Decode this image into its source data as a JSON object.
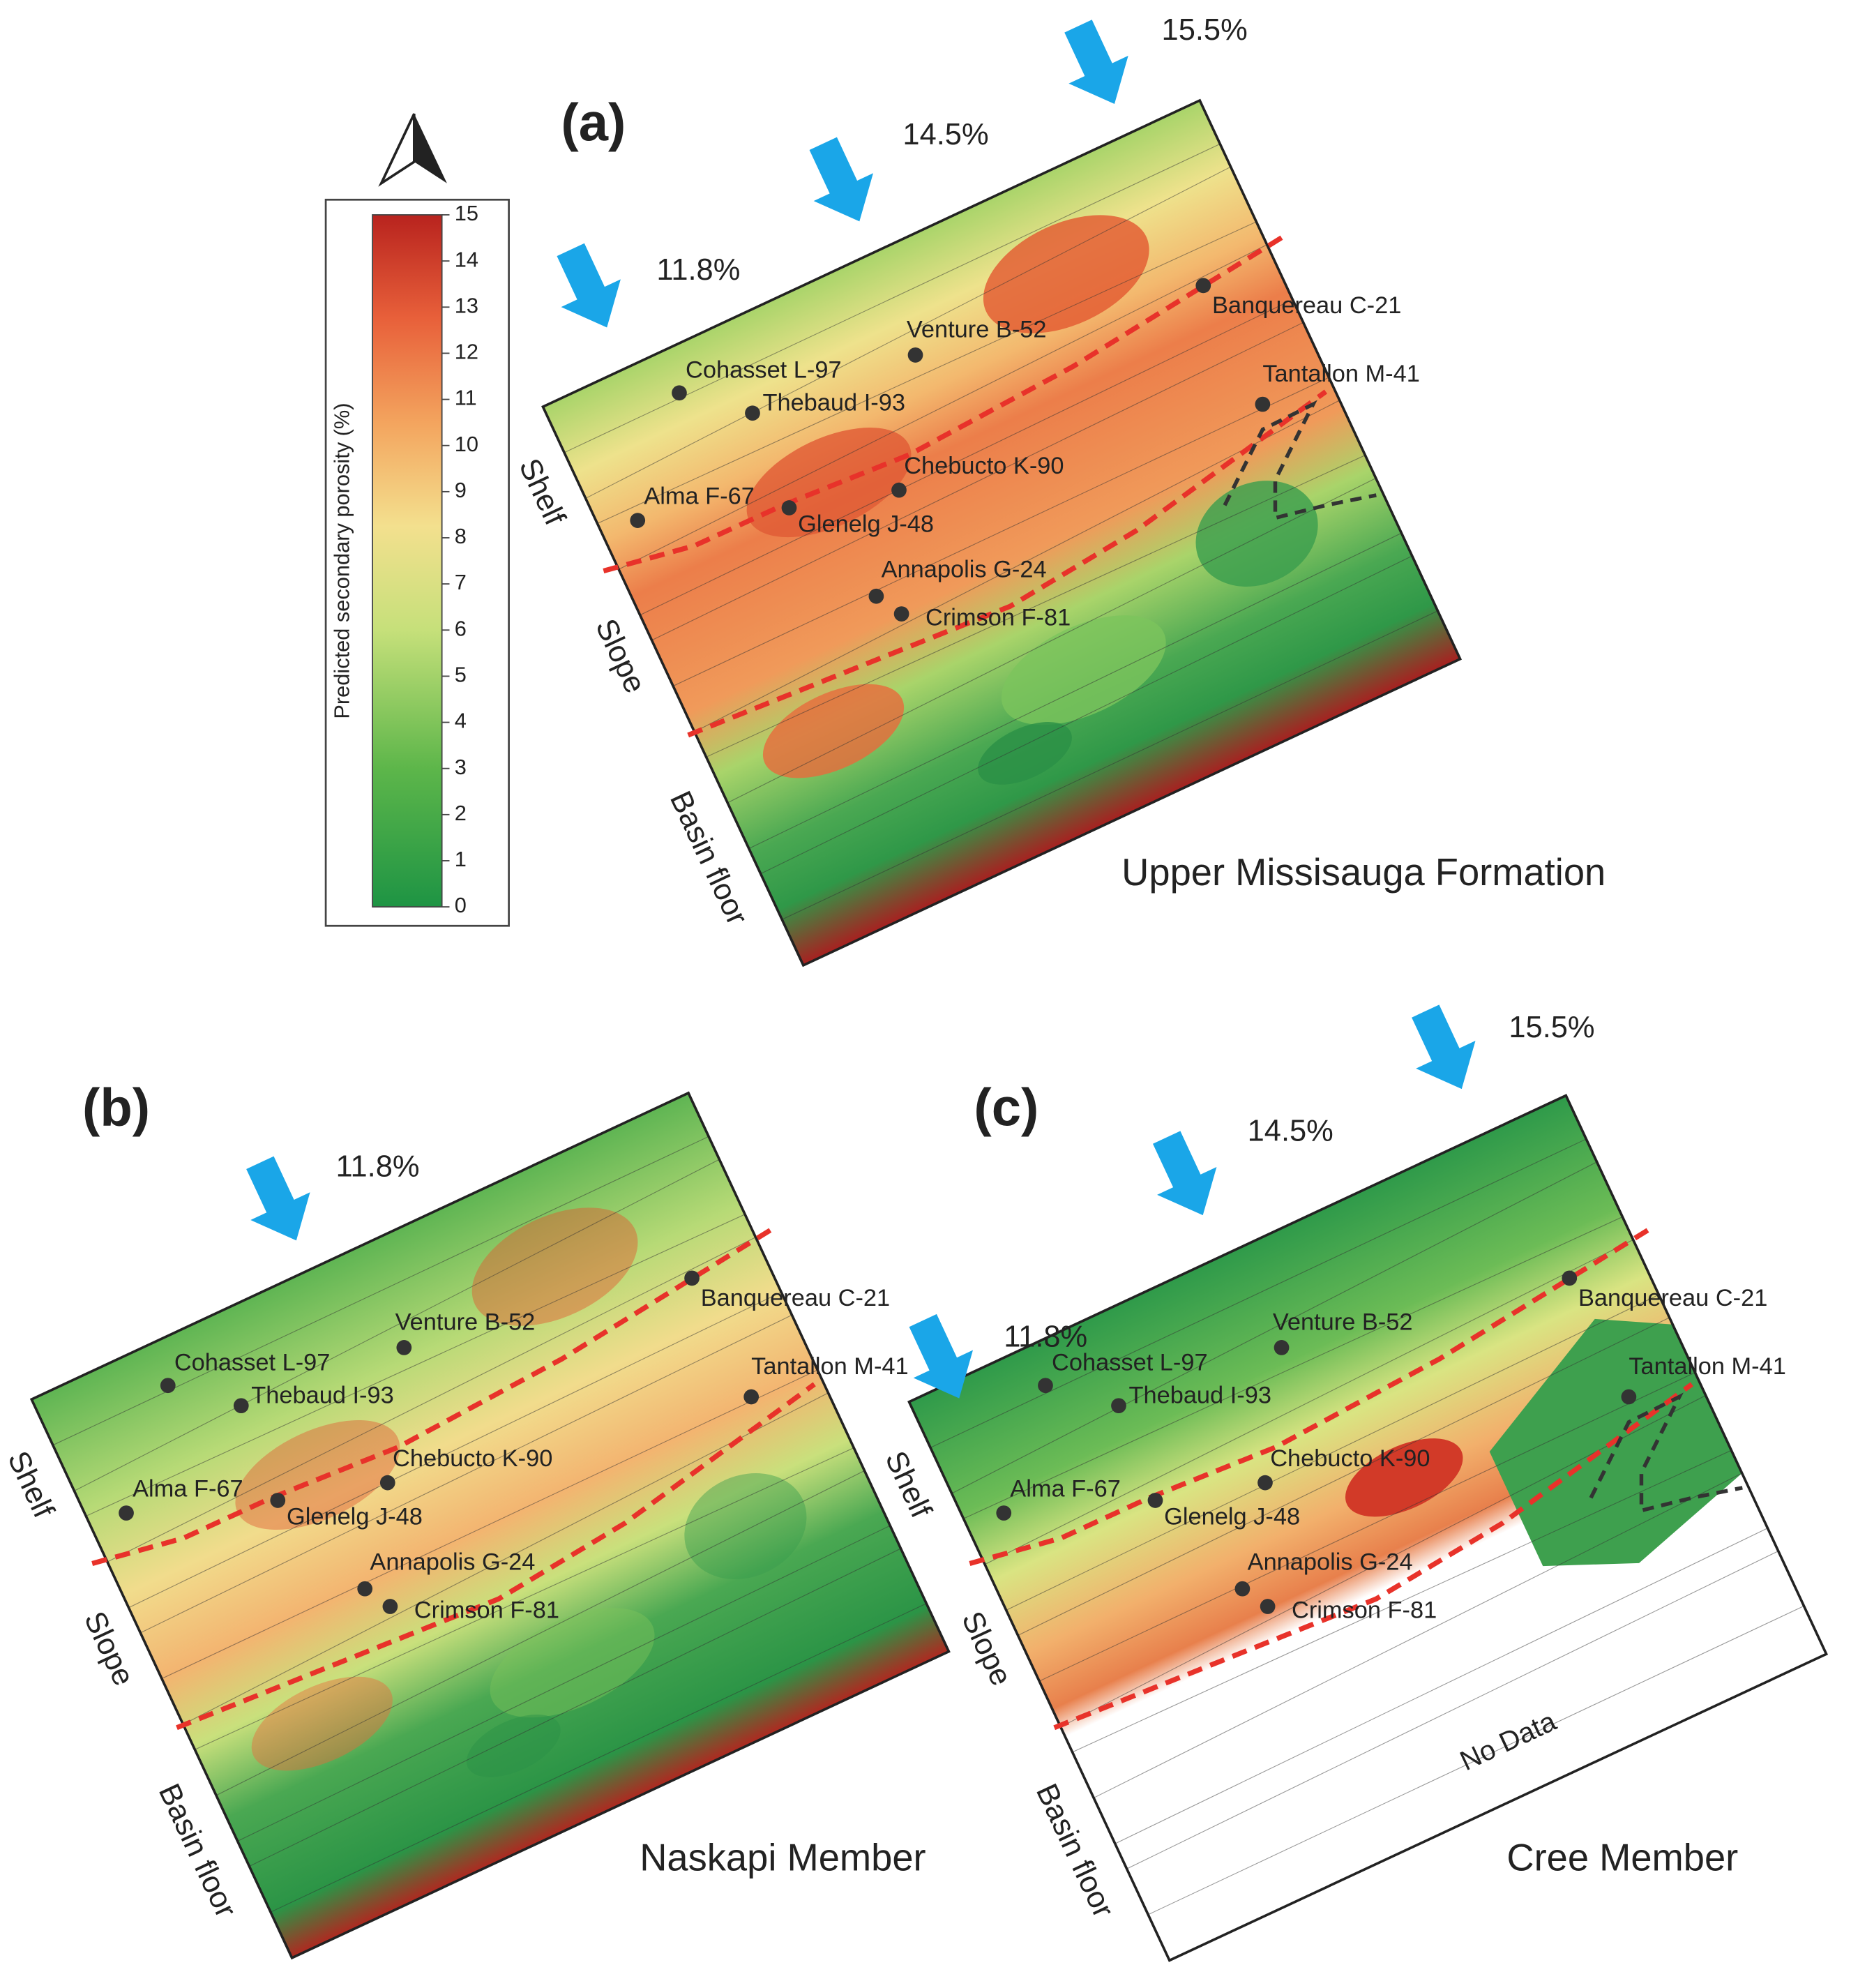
{
  "colorbar": {
    "label": "Predicted secondary porosity (%)",
    "range": [
      0,
      15
    ],
    "ticks": [
      0,
      1,
      2,
      3,
      4,
      5,
      6,
      7,
      8,
      9,
      10,
      11,
      12,
      13,
      14,
      15
    ]
  },
  "panels": [
    {
      "label": "(a)",
      "title": "Upper Missisauga Formation",
      "arrows": [
        "11.8%",
        "14.5%",
        "15.5%"
      ],
      "wells": [
        "Cohasset L-97",
        "Thebaud I-93",
        "Venture B-52",
        "Banquereau C-21",
        "Tantallon M-41",
        "Chebucto K-90",
        "Alma F-67",
        "Glenelg J-48",
        "Annapolis G-24",
        "Crimson F-81"
      ],
      "zones": [
        "Shelf",
        "Slope",
        "Basin floor"
      ]
    },
    {
      "label": "(b)",
      "title": "Naskapi Member",
      "arrows": [
        "11.8%"
      ],
      "wells": [
        "Cohasset L-97",
        "Thebaud I-93",
        "Venture B-52",
        "Banquereau C-21",
        "Tantallon M-41",
        "Chebucto K-90",
        "Alma F-67",
        "Glenelg J-48",
        "Annapolis G-24",
        "Crimson F-81"
      ],
      "zones": [
        "Shelf",
        "Slope",
        "Basin floor"
      ]
    },
    {
      "label": "(c)",
      "title": "Cree Member",
      "arrows": [
        "11.8%",
        "14.5%",
        "15.5%"
      ],
      "wells": [
        "Cohasset L-97",
        "Thebaud I-93",
        "Venture B-52",
        "Banquereau C-21",
        "Tantallon M-41",
        "Chebucto K-90",
        "Alma F-67",
        "Glenelg J-48",
        "Annapolis G-24",
        "Crimson F-81"
      ],
      "zones": [
        "Shelf",
        "Slope",
        "Basin floor"
      ],
      "note": "No Data"
    }
  ]
}
